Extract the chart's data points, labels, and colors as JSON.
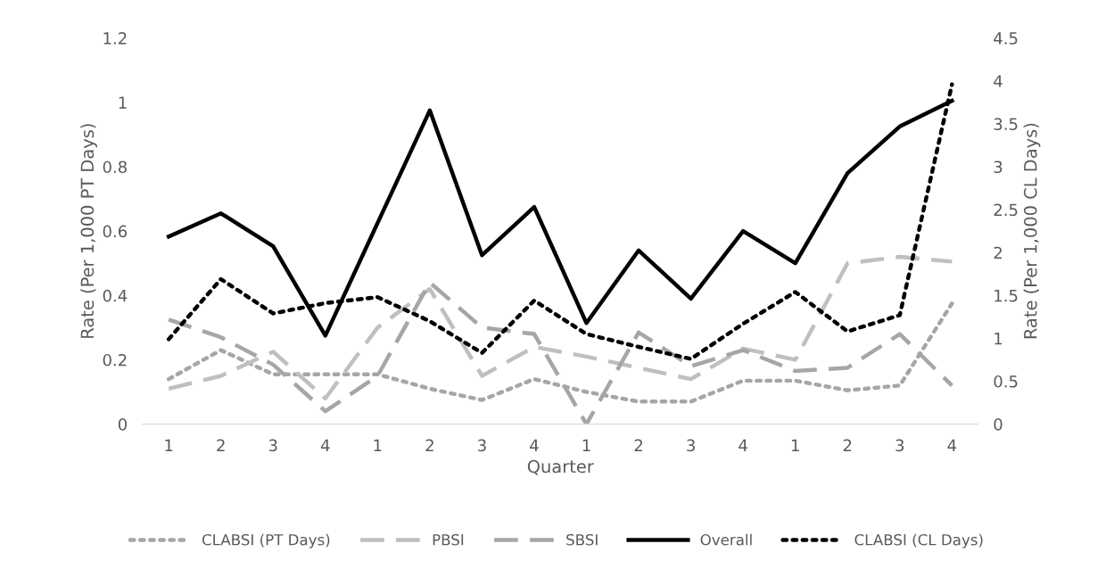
{
  "chart_data": {
    "type": "line",
    "xlabel": "Quarter",
    "ylabel": "Rate (Per 1,000 PT Days)",
    "y2label": "Rate (Per 1,000 CL Days)",
    "categories": [
      "1",
      "2",
      "3",
      "4",
      "1",
      "2",
      "3",
      "4",
      "1",
      "2",
      "3",
      "4",
      "1",
      "2",
      "3",
      "4"
    ],
    "ylim": [
      0,
      1.2
    ],
    "yticks": [
      0,
      0.2,
      0.4,
      0.6,
      0.8,
      1,
      1.2
    ],
    "y2lim": [
      0,
      4.5
    ],
    "y2ticks": [
      0,
      0.5,
      1,
      1.5,
      2,
      2.5,
      3,
      3.5,
      4,
      4.5
    ],
    "grid": false,
    "legend": "bottom",
    "marker": "none",
    "series": [
      {
        "name": "CLABSI (PT Days)",
        "color": "#a6a6a6",
        "line_style": "dotted",
        "values": [
          0.14,
          0.23,
          0.155,
          0.155,
          0.155,
          0.11,
          0.075,
          0.14,
          0.1,
          0.07,
          0.07,
          0.135,
          0.135,
          0.105,
          0.12,
          0.375
        ]
      },
      {
        "name": "PBSI",
        "color": "#bfbfbf",
        "line_style": "dashed",
        "values": [
          0.11,
          0.15,
          0.225,
          0.08,
          0.3,
          0.42,
          0.15,
          0.24,
          0.21,
          0.175,
          0.14,
          0.235,
          0.2,
          0.5,
          0.52,
          0.505
        ]
      },
      {
        "name": "SBSI",
        "color": "#a6a6a6",
        "line_style": "dashed",
        "values": [
          0.325,
          0.27,
          0.185,
          0.04,
          0.15,
          0.44,
          0.3,
          0.28,
          0.0,
          0.285,
          0.18,
          0.23,
          0.165,
          0.175,
          0.28,
          0.12
        ]
      },
      {
        "name": "Overall",
        "color": "#000000",
        "line_style": "solid",
        "values": [
          0.583,
          0.655,
          0.553,
          0.275,
          0.625,
          0.975,
          0.525,
          0.675,
          0.314,
          0.54,
          0.39,
          0.6,
          0.5,
          0.78,
          0.925,
          1.005
        ]
      },
      {
        "name": "CLABSI (CL Days)",
        "color": "#000000",
        "line_style": "dotted",
        "axis": "y2",
        "values": [
          0.99,
          1.69,
          1.29,
          1.41,
          1.48,
          1.2,
          0.83,
          1.44,
          1.05,
          0.9,
          0.76,
          1.17,
          1.54,
          1.08,
          1.27,
          3.96
        ]
      }
    ]
  }
}
